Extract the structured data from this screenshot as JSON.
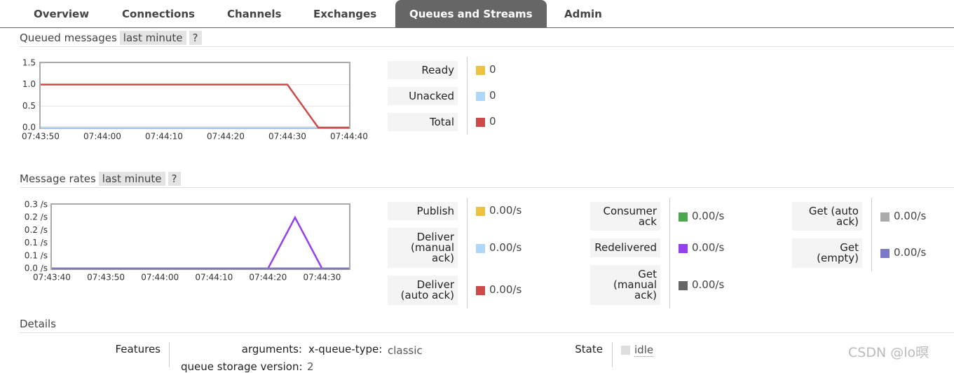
{
  "nav": {
    "tabs": [
      "Overview",
      "Connections",
      "Channels",
      "Exchanges",
      "Queues and Streams",
      "Admin"
    ],
    "active": 4
  },
  "chart_data": [
    {
      "type": "line",
      "title": "Queued messages",
      "range_label": "last minute",
      "help": "?",
      "x": [
        "07:43:50",
        "07:44:30",
        "07:44:35",
        "07:44:40"
      ],
      "xlim": [
        "07:43:50",
        "07:44:40"
      ],
      "xticks": [
        "07:43:50",
        "07:44:00",
        "07:44:10",
        "07:44:20",
        "07:44:30",
        "07:44:40"
      ],
      "ylim": [
        0,
        1.5
      ],
      "yticks": [
        {
          "value": 0,
          "label": "0.0"
        },
        {
          "value": 0.5,
          "label": "0.5"
        },
        {
          "value": 1,
          "label": "1.0"
        },
        {
          "value": 1.5,
          "label": "1.5"
        }
      ],
      "grid": true,
      "series": [
        {
          "name": "Ready",
          "color": "#edc240",
          "values": [
            0,
            0,
            0,
            0
          ],
          "current": 0
        },
        {
          "name": "Unacked",
          "color": "#afd8f8",
          "values": [
            0,
            0,
            0,
            0
          ],
          "current": 0
        },
        {
          "name": "Total",
          "color": "#cb4b4b",
          "values": [
            1,
            1,
            0,
            0
          ],
          "current": 0
        }
      ]
    },
    {
      "type": "line",
      "title": "Message rates",
      "range_label": "last minute",
      "help": "?",
      "x": [
        "07:43:40",
        "07:44:20",
        "07:44:25",
        "07:44:30",
        "07:44:35"
      ],
      "xlim": [
        "07:43:40",
        "07:44:35"
      ],
      "xticks": [
        "07:43:40",
        "07:43:50",
        "07:44:00",
        "07:44:10",
        "07:44:20",
        "07:44:30"
      ],
      "ylim": [
        0,
        0.25
      ],
      "yticks": [
        {
          "value": 0,
          "label": "0.0 /s"
        },
        {
          "value": 0.05,
          "label": "0.1 /s"
        },
        {
          "value": 0.1,
          "label": "0.1 /s"
        },
        {
          "value": 0.15,
          "label": "0.2 /s"
        },
        {
          "value": 0.2,
          "label": "0.2 /s"
        },
        {
          "value": 0.25,
          "label": "0.3 /s"
        }
      ],
      "grid": false,
      "series": [
        {
          "name": "Publish",
          "color": "#edc240",
          "values": [
            0,
            0,
            0,
            0,
            0
          ],
          "current": {
            "value": 0,
            "label": "0.00/s"
          }
        },
        {
          "name": "Deliver (manual ack)",
          "color": "#afd8f8",
          "values": [
            0,
            0,
            0,
            0,
            0
          ],
          "current": {
            "value": 0,
            "label": "0.00/s"
          }
        },
        {
          "name": "Deliver (auto ack)",
          "color": "#cb4b4b",
          "values": [
            0,
            0,
            0,
            0,
            0
          ],
          "current": {
            "value": 0,
            "label": "0.00/s"
          }
        },
        {
          "name": "Consumer ack",
          "color": "#4da74d",
          "values": [
            0,
            0,
            0,
            0,
            0
          ],
          "current": {
            "value": 0,
            "label": "0.00/s"
          }
        },
        {
          "name": "Redelivered",
          "color": "#9440ed",
          "values": [
            0,
            0,
            0.2,
            0,
            0
          ],
          "current": {
            "value": 0,
            "label": "0.00/s"
          }
        },
        {
          "name": "Get (manual ack)",
          "color": "#666666",
          "values": [
            0,
            0,
            0,
            0,
            0
          ],
          "current": {
            "value": 0,
            "label": "0.00/s"
          }
        },
        {
          "name": "Get (auto ack)",
          "color": "#aaaaaa",
          "values": [
            0,
            0,
            0,
            0,
            0
          ],
          "current": {
            "value": 0,
            "label": "0.00/s"
          }
        },
        {
          "name": "Get (empty)",
          "color": "#7c79c8",
          "values": [
            0,
            0,
            0,
            0,
            0
          ],
          "current": {
            "value": 0,
            "label": "0.00/s"
          }
        }
      ]
    }
  ],
  "details": {
    "title": "Details",
    "features_label": "Features",
    "arguments_label": "arguments:",
    "queue_type_key": "x-queue-type:",
    "queue_type_value": "classic",
    "storage_key": "queue storage version:",
    "storage_value": "2",
    "state_label": "State",
    "state_value": "idle"
  },
  "watermark": "CSDN @lo暝"
}
